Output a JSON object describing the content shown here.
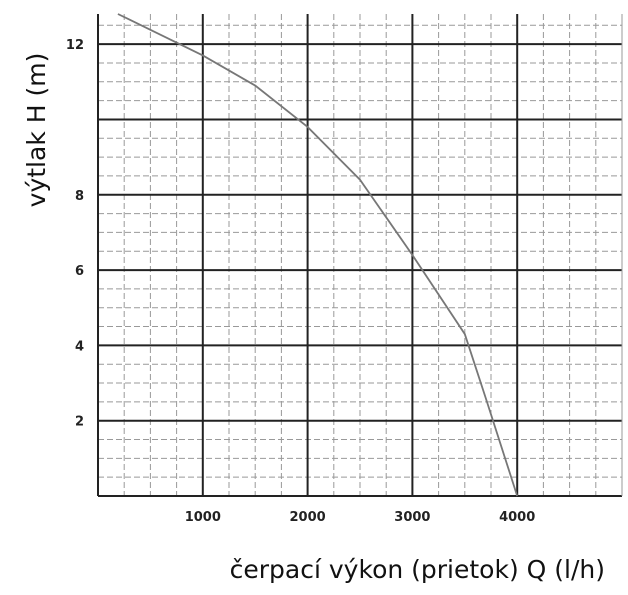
{
  "chart_data": {
    "type": "line",
    "x_label": "čerpací výkon (prietok) Q (l/h)",
    "y_label": "výtlak H (m)",
    "x": [
      190,
      1000,
      1500,
      2000,
      2500,
      3000,
      3500,
      3700,
      4000
    ],
    "series": [
      {
        "color": "#777777",
        "values": [
          12.8,
          11.7,
          10.9,
          9.8,
          8.4,
          6.4,
          4.3,
          2.6,
          0
        ]
      }
    ],
    "xlim": [
      0,
      5000
    ],
    "ylim": [
      0,
      12.8
    ],
    "xticks": [
      1000,
      2000,
      3000,
      4000
    ],
    "yticks": [
      2,
      4,
      6,
      8,
      12
    ],
    "major_grid_x": [
      1000,
      2000,
      3000,
      4000
    ],
    "major_grid_y": [
      2,
      4,
      6,
      8,
      10,
      12
    ],
    "minor_step_x": 250,
    "minor_step_y": 0.5,
    "grid": true
  }
}
